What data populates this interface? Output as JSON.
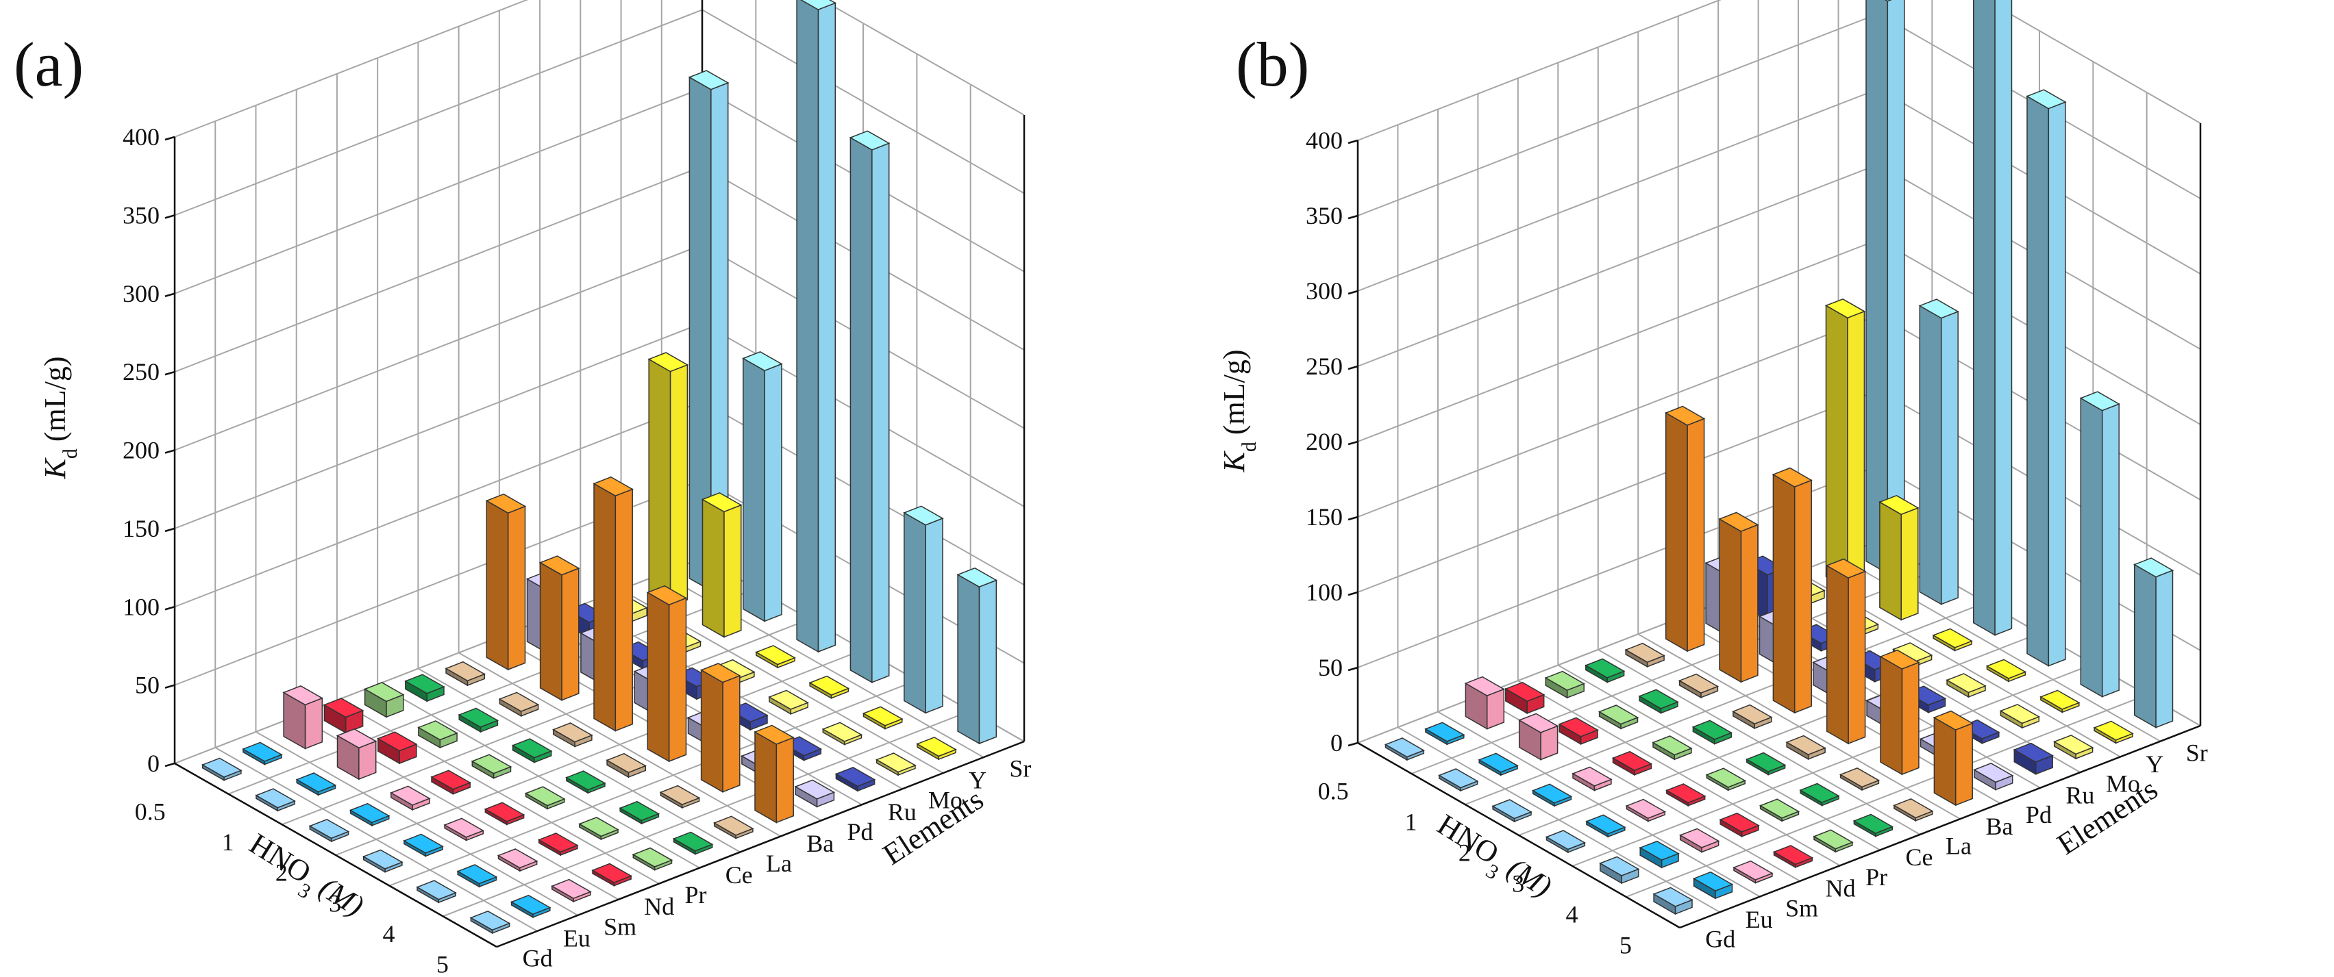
{
  "chart_data": [
    {
      "type": "bar",
      "panel_label": "(a)",
      "zlabel_prefix": "K",
      "zlabel_sub": "d",
      "zlabel_unit": "(mL/g)",
      "xlabel_prefix": "HNO",
      "xlabel_sub": "3",
      "xlabel_unit": "(M)",
      "ylabel": "Elements",
      "zlim": [
        0,
        400
      ],
      "z_ticks": [
        "0",
        "50",
        "100",
        "150",
        "200",
        "250",
        "300",
        "350",
        "400"
      ],
      "hno3_ticks": [
        "0.5",
        "1",
        "2",
        "3",
        "4",
        "5"
      ],
      "elements": [
        "Gd",
        "Eu",
        "Sm",
        "Nd",
        "Pr",
        "Ce",
        "La",
        "Ba",
        "Pd",
        "Ru",
        "Mo",
        "Y",
        "Sr"
      ],
      "colors": {
        "Gd": "#7fb5d6",
        "Eu": "#1fa2d9",
        "Sm": "#f19ab6",
        "Nd": "#d6273e",
        "Pr": "#8fc47a",
        "Ce": "#1a9e50",
        "La": "#c4a887",
        "Ba": "#f08a24",
        "Pd": "#b8b3e0",
        "Ru": "#3b47a6",
        "Mo": "#ece46a",
        "Y": "#f5e82a",
        "Sr": "#8fd3ee"
      },
      "series": [
        {
          "name": "0.5 M",
          "values": [
            2,
            2,
            28,
            10,
            10,
            5,
            3,
            100,
            40,
            10,
            5,
            150,
            320
          ]
        },
        {
          "name": "1 M",
          "values": [
            2,
            2,
            20,
            8,
            5,
            3,
            3,
            80,
            25,
            5,
            3,
            80,
            160
          ]
        },
        {
          "name": "2 M",
          "values": [
            2,
            2,
            3,
            3,
            3,
            3,
            3,
            150,
            20,
            8,
            3,
            2,
            410
          ]
        },
        {
          "name": "3 M",
          "values": [
            2,
            2,
            2,
            2,
            2,
            2,
            3,
            100,
            10,
            5,
            3,
            2,
            340
          ]
        },
        {
          "name": "4 M",
          "values": [
            2,
            2,
            2,
            2,
            2,
            2,
            2,
            70,
            5,
            3,
            2,
            2,
            120
          ]
        },
        {
          "name": "5 M",
          "values": [
            2,
            2,
            2,
            2,
            2,
            2,
            2,
            50,
            5,
            3,
            2,
            2,
            100
          ]
        }
      ]
    },
    {
      "type": "bar",
      "panel_label": "(b)",
      "zlabel_prefix": "K",
      "zlabel_sub": "d",
      "zlabel_unit": "(mL/g)",
      "xlabel_prefix": "HNO",
      "xlabel_sub": "3",
      "xlabel_unit": "(M)",
      "ylabel": "Elements",
      "zlim": [
        0,
        400
      ],
      "z_ticks": [
        "0",
        "50",
        "100",
        "150",
        "200",
        "250",
        "300",
        "350",
        "400"
      ],
      "hno3_ticks": [
        "0.5",
        "1",
        "2",
        "3",
        "4",
        "5"
      ],
      "elements": [
        "Gd",
        "Eu",
        "Sm",
        "Nd",
        "Pr",
        "Ce",
        "La",
        "Ba",
        "Pd",
        "Ru",
        "Mo",
        "Y",
        "Sr"
      ],
      "colors": {
        "Gd": "#7fb5d6",
        "Eu": "#1fa2d9",
        "Sm": "#f19ab6",
        "Nd": "#d6273e",
        "Pr": "#8fc47a",
        "Ce": "#1a9e50",
        "La": "#c4a887",
        "Ba": "#f08a24",
        "Pd": "#b8b3e0",
        "Ru": "#3b47a6",
        "Mo": "#ece46a",
        "Y": "#f5e82a",
        "Sr": "#8fd3ee"
      },
      "series": [
        {
          "name": "0.5 M",
          "values": [
            2,
            2,
            22,
            8,
            5,
            3,
            3,
            150,
            40,
            30,
            5,
            180,
            380
          ]
        },
        {
          "name": "1 M",
          "values": [
            2,
            2,
            18,
            5,
            3,
            3,
            3,
            100,
            25,
            5,
            3,
            70,
            190
          ]
        },
        {
          "name": "2 M",
          "values": [
            2,
            2,
            3,
            3,
            3,
            3,
            3,
            150,
            15,
            8,
            3,
            2,
            440
          ]
        },
        {
          "name": "3 M",
          "values": [
            2,
            2,
            2,
            2,
            2,
            2,
            3,
            110,
            10,
            5,
            3,
            2,
            370
          ]
        },
        {
          "name": "4 M",
          "values": [
            5,
            5,
            3,
            3,
            2,
            2,
            2,
            70,
            5,
            3,
            3,
            2,
            190
          ]
        },
        {
          "name": "5 M",
          "values": [
            5,
            5,
            2,
            2,
            2,
            2,
            2,
            50,
            5,
            8,
            3,
            2,
            100
          ]
        }
      ]
    }
  ]
}
